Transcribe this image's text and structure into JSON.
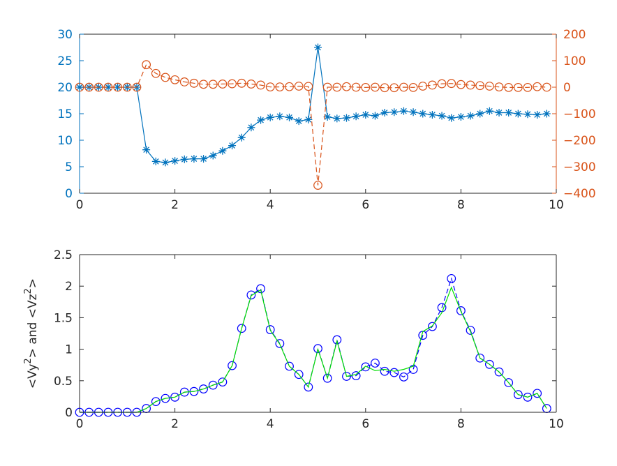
{
  "chart_data": [
    {
      "type": "line",
      "title": "",
      "xlabel": "",
      "ylabel": "",
      "y2label": "",
      "xlim": [
        0,
        10
      ],
      "ylim": [
        0,
        30
      ],
      "y2lim": [
        -400,
        200
      ],
      "x_ticks": [
        "0",
        "2",
        "4",
        "6",
        "8",
        "10"
      ],
      "y_ticks": [
        "0",
        "5",
        "10",
        "15",
        "20",
        "25",
        "30"
      ],
      "y2_ticks": [
        "-400",
        "-300",
        "-200",
        "-100",
        "0",
        "100",
        "200"
      ],
      "grid": false,
      "legend": "none",
      "colors": {
        "left_axis": "#0072bd",
        "right_axis": "#d95319"
      },
      "x": [
        0,
        0.2,
        0.4,
        0.6,
        0.8,
        1.0,
        1.2,
        1.4,
        1.6,
        1.8,
        2.0,
        2.2,
        2.4,
        2.6,
        2.8,
        3.0,
        3.2,
        3.4,
        3.6,
        3.8,
        4.0,
        4.2,
        4.4,
        4.6,
        4.8,
        5.0,
        5.2,
        5.4,
        5.6,
        5.8,
        6.0,
        6.2,
        6.4,
        6.6,
        6.8,
        7.0,
        7.2,
        7.4,
        7.6,
        7.8,
        8.0,
        8.2,
        8.4,
        8.6,
        8.8,
        9.0,
        9.2,
        9.4,
        9.6,
        9.8
      ],
      "series": [
        {
          "axis": "left",
          "marker": "asterisk",
          "line": "solid",
          "color": "#0072bd",
          "values": [
            20,
            20,
            20,
            20,
            20,
            20,
            20,
            8.2,
            6.0,
            5.8,
            6.1,
            6.4,
            6.5,
            6.5,
            7.1,
            8.0,
            9.0,
            10.5,
            12.4,
            13.8,
            14.3,
            14.5,
            14.3,
            13.6,
            13.9,
            27.5,
            14.4,
            14.1,
            14.2,
            14.5,
            14.8,
            14.6,
            15.2,
            15.3,
            15.5,
            15.3,
            15.0,
            14.8,
            14.6,
            14.2,
            14.4,
            14.6,
            15.0,
            15.5,
            15.2,
            15.2,
            15.0,
            14.9,
            14.8,
            15.0
          ]
        },
        {
          "axis": "right",
          "marker": "circle",
          "line": "dashed",
          "color": "#d95319",
          "values": [
            0,
            0,
            0,
            0,
            0,
            0,
            0,
            85,
            52,
            37,
            28,
            20,
            15,
            11,
            11,
            12,
            13,
            15,
            12,
            8,
            1,
            1,
            2,
            4,
            3,
            -370,
            0,
            0,
            2,
            0,
            -1,
            0,
            -2,
            -2,
            0,
            -1,
            4,
            8,
            13,
            14,
            10,
            8,
            6,
            4,
            1,
            -1,
            -1,
            -1,
            2,
            0
          ]
        }
      ]
    },
    {
      "type": "line",
      "title": "",
      "xlabel": "",
      "ylabel": "<Vy²> and <Vz²>",
      "ylabel_parts": {
        "a": "<Vy",
        "sup": "2",
        "b": "> and <Vz",
        "c": ">"
      },
      "xlim": [
        0,
        10
      ],
      "ylim": [
        0,
        2.5
      ],
      "x_ticks": [
        "0",
        "2",
        "4",
        "6",
        "8",
        "10"
      ],
      "y_ticks": [
        "0",
        "0.5",
        "1",
        "1.5",
        "2",
        "2.5"
      ],
      "grid": false,
      "legend": "none",
      "x": [
        0,
        0.2,
        0.4,
        0.6,
        0.8,
        1.0,
        1.2,
        1.4,
        1.6,
        1.8,
        2.0,
        2.2,
        2.4,
        2.6,
        2.8,
        3.0,
        3.2,
        3.4,
        3.6,
        3.8,
        4.0,
        4.2,
        4.4,
        4.6,
        4.8,
        5.0,
        5.2,
        5.4,
        5.6,
        5.8,
        6.0,
        6.2,
        6.4,
        6.6,
        6.8,
        7.0,
        7.2,
        7.4,
        7.6,
        7.8,
        8.0,
        8.2,
        8.4,
        8.6,
        8.8,
        9.0,
        9.2,
        9.4,
        9.6,
        9.8
      ],
      "series": [
        {
          "marker": "circle",
          "line": "dashed",
          "color": "#0000ff",
          "values": [
            0,
            0,
            0,
            0,
            0,
            0,
            0,
            0.06,
            0.17,
            0.22,
            0.24,
            0.32,
            0.33,
            0.37,
            0.43,
            0.48,
            0.74,
            1.33,
            1.86,
            1.96,
            1.31,
            1.09,
            0.73,
            0.6,
            0.4,
            1.01,
            0.54,
            1.15,
            0.57,
            0.58,
            0.72,
            0.78,
            0.65,
            0.63,
            0.56,
            0.68,
            1.22,
            1.36,
            1.66,
            2.12,
            1.61,
            1.3,
            0.86,
            0.76,
            0.64,
            0.47,
            0.28,
            0.24,
            0.3,
            0.06
          ]
        },
        {
          "marker": "none",
          "line": "solid",
          "color": "#00dd00",
          "values": [
            0,
            0,
            0,
            0,
            0,
            0,
            0,
            0.06,
            0.17,
            0.22,
            0.24,
            0.32,
            0.33,
            0.37,
            0.43,
            0.48,
            0.74,
            1.33,
            1.85,
            1.94,
            1.3,
            1.08,
            0.73,
            0.6,
            0.4,
            1.0,
            0.54,
            1.13,
            0.57,
            0.6,
            0.73,
            0.66,
            0.68,
            0.65,
            0.68,
            0.73,
            1.28,
            1.37,
            1.58,
            1.98,
            1.6,
            1.28,
            0.86,
            0.76,
            0.64,
            0.47,
            0.28,
            0.24,
            0.3,
            0.06
          ]
        }
      ]
    }
  ]
}
